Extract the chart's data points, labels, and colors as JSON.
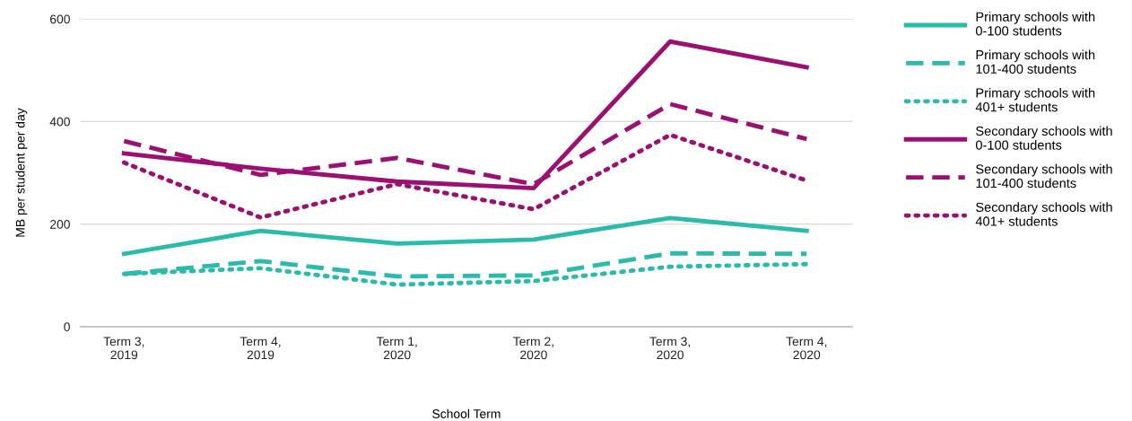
{
  "chart_data": {
    "type": "line",
    "xlabel": "School Term",
    "ylabel": "MB per student per day",
    "categories": [
      "Term 3,\n2019",
      "Term 4,\n2019",
      "Term 1,\n2020",
      "Term 2,\n2020",
      "Term 3,\n2020",
      "Term 4,\n2020"
    ],
    "ylim": [
      0,
      600
    ],
    "yticks": [
      0,
      200,
      400,
      600
    ],
    "grid": "y",
    "legend": "right",
    "marker": "none",
    "series": [
      {
        "name": "Primary schools with\n0-100 students",
        "color": "#2bbbad",
        "line_style": "solid",
        "values": [
          142,
          187,
          162,
          170,
          212,
          187
        ]
      },
      {
        "name": "Primary schools with\n101-400 students",
        "color": "#2bbbad",
        "line_style": "dashed",
        "values": [
          103,
          128,
          98,
          100,
          143,
          142
        ]
      },
      {
        "name": "Primary schools with\n401+ students",
        "color": "#2bbbad",
        "line_style": "dotted",
        "values": [
          103,
          114,
          82,
          89,
          117,
          122
        ]
      },
      {
        "name": "Secondary schools with\n0-100 students",
        "color": "#9b1072",
        "line_style": "solid",
        "values": [
          338,
          308,
          283,
          270,
          556,
          506
        ]
      },
      {
        "name": "Secondary schools with\n101-400 students",
        "color": "#9b1072",
        "line_style": "dashed",
        "values": [
          362,
          296,
          329,
          278,
          434,
          366
        ]
      },
      {
        "name": "Secondary schools with\n401+ students",
        "color": "#9b1072",
        "line_style": "dotted",
        "values": [
          320,
          213,
          278,
          229,
          374,
          285
        ]
      }
    ]
  }
}
